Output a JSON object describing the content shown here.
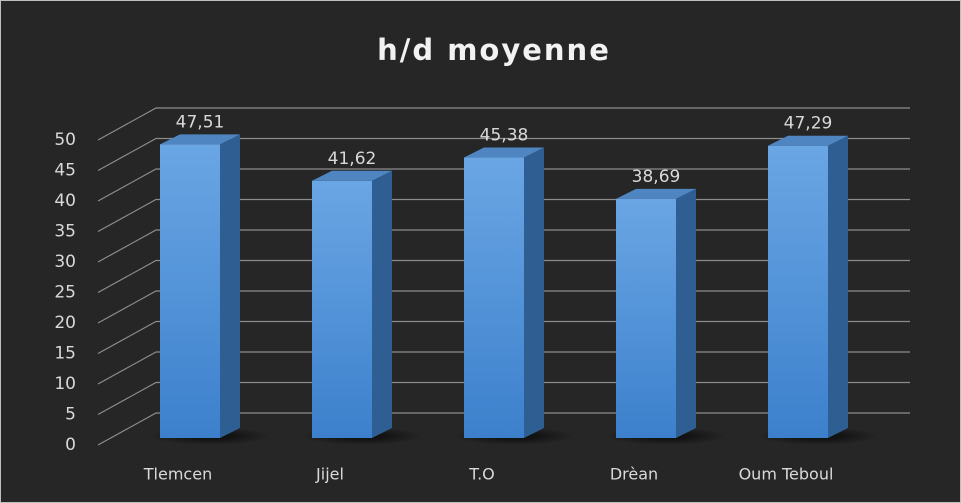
{
  "chart_data": {
    "type": "bar3d",
    "title": "h/d moyenne",
    "categories": [
      "Tlemcen",
      "Jijel",
      "T.O",
      "Drèan",
      "Oum Teboul"
    ],
    "values": [
      47.51,
      41.62,
      45.38,
      38.69,
      47.29
    ],
    "value_labels": [
      "47,51",
      "41,62",
      "45,38",
      "38,69",
      "47,29"
    ],
    "color": "#5b9bd5",
    "ylim": [
      0,
      50
    ],
    "yticks": [
      0,
      5,
      10,
      15,
      20,
      25,
      30,
      35,
      40,
      45,
      50
    ],
    "grid": true
  }
}
